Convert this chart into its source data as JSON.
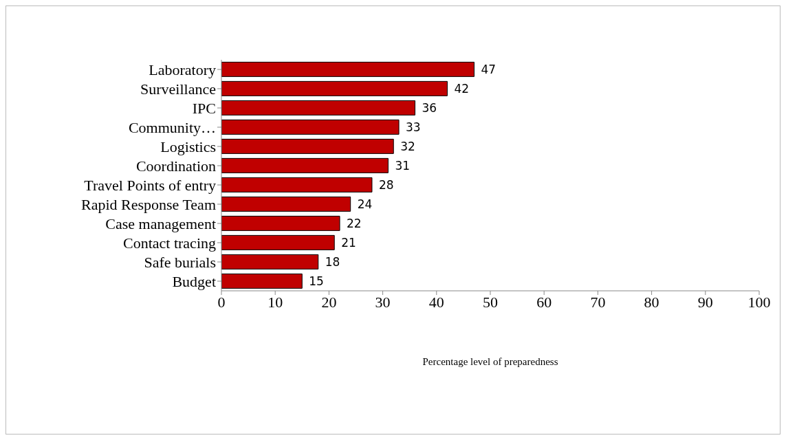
{
  "chart_data": {
    "type": "bar",
    "orientation": "horizontal",
    "xlabel": "Percentage level of preparedness",
    "categories": [
      "Laboratory",
      "Surveillance",
      "IPC",
      "Community…",
      "Logistics",
      "Coordination",
      "Travel Points of entry",
      "Rapid Response Team",
      "Case management",
      "Contact tracing",
      "Safe burials",
      "Budget"
    ],
    "values": [
      47,
      42,
      36,
      33,
      32,
      31,
      28,
      24,
      22,
      21,
      18,
      15
    ],
    "color": "#c00000",
    "xlim": [
      0,
      100
    ],
    "xticks": [
      0,
      10,
      20,
      30,
      40,
      50,
      60,
      70,
      80,
      90,
      100
    ],
    "data_labels": true,
    "grid": false
  }
}
